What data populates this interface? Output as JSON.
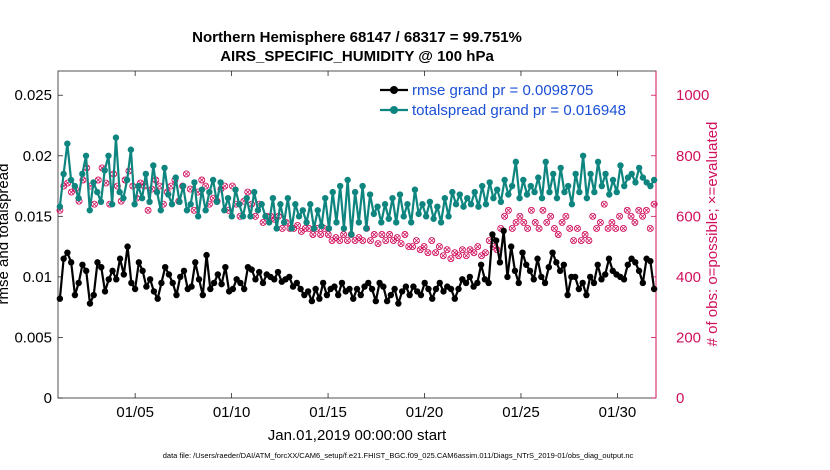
{
  "chart_data": {
    "type": "line",
    "title": "Northern Hemisphere 68147 / 68317 = 99.751%",
    "subtitle": "AIRS_SPECIFIC_HUMIDITY @ 100 hPa",
    "xlabel": "Jan.01,2019 00:00:00 start",
    "ylabel": "rmse and totalspread",
    "ylabel_right": "# of obs: o=possible; ×=evaluated",
    "x_ticks": [
      "01/05",
      "01/10",
      "01/15",
      "01/20",
      "01/25",
      "01/30"
    ],
    "x_tick_days": [
      5,
      10,
      15,
      20,
      25,
      30
    ],
    "xlim": [
      1,
      32
    ],
    "ylim": [
      0,
      0.027
    ],
    "y_ticks": [
      "0",
      "0.005",
      "0.01",
      "0.015",
      "0.02",
      "0.025"
    ],
    "y_tick_values": [
      0,
      0.005,
      0.01,
      0.015,
      0.02,
      0.025
    ],
    "ylim_right": [
      0,
      1080
    ],
    "y_ticks_right": [
      "0",
      "200",
      "400",
      "600",
      "800",
      "1000"
    ],
    "y_tick_values_right": [
      0,
      200,
      400,
      600,
      800,
      1000
    ],
    "footnote": "data file: /Users/raeder/DAI/ATM_forcXX/CAM6_setup/f.e21.FHIST_BGC.f09_025.CAM6assim.011/Diags_NTrS_2019-01/obs_diag_output.nc",
    "series": [
      {
        "name": "rmse grand pr = 0.0098705",
        "color": "#000000",
        "axis": "left",
        "values": [
          0.0082,
          0.0115,
          0.012,
          0.0112,
          0.0085,
          0.0095,
          0.011,
          0.0105,
          0.0078,
          0.0085,
          0.0112,
          0.0108,
          0.0088,
          0.0098,
          0.0105,
          0.0098,
          0.0115,
          0.0102,
          0.0125,
          0.0095,
          0.009,
          0.0112,
          0.0105,
          0.0092,
          0.0098,
          0.0088,
          0.0082,
          0.0095,
          0.0108,
          0.0102,
          0.0095,
          0.0085,
          0.01,
          0.0105,
          0.009,
          0.0092,
          0.0112,
          0.0098,
          0.0085,
          0.0118,
          0.009,
          0.0095,
          0.0102,
          0.0094,
          0.0108,
          0.0088,
          0.009,
          0.0098,
          0.0095,
          0.009,
          0.0108,
          0.0106,
          0.0098,
          0.0104,
          0.0095,
          0.0102,
          0.01,
          0.0098,
          0.0104,
          0.0096,
          0.0098,
          0.01,
          0.0092,
          0.0095,
          0.009,
          0.0085,
          0.0088,
          0.008,
          0.009,
          0.0082,
          0.0095,
          0.0085,
          0.009,
          0.0092,
          0.0085,
          0.0095,
          0.0088,
          0.009,
          0.0082,
          0.009,
          0.0085,
          0.0092,
          0.0095,
          0.009,
          0.008,
          0.0095,
          0.0092,
          0.008,
          0.0085,
          0.009,
          0.0078,
          0.0088,
          0.0092,
          0.0085,
          0.0092,
          0.0088,
          0.0085,
          0.0095,
          0.009,
          0.0082,
          0.009,
          0.0095,
          0.0088,
          0.0092,
          0.009,
          0.0082,
          0.009,
          0.0098,
          0.0095,
          0.01,
          0.0092,
          0.0095,
          0.011,
          0.0098,
          0.0095,
          0.0135,
          0.013,
          0.0112,
          0.0138,
          0.01,
          0.0125,
          0.0105,
          0.0095,
          0.012,
          0.011,
          0.0105,
          0.0098,
          0.0115,
          0.01,
          0.0095,
          0.0108,
          0.012,
          0.0112,
          0.0105,
          0.011,
          0.0085,
          0.01,
          0.01,
          0.009,
          0.0095,
          0.0085,
          0.01,
          0.0095,
          0.011,
          0.0098,
          0.0102,
          0.0115,
          0.0105,
          0.0102,
          0.01,
          0.0098,
          0.011,
          0.0115,
          0.0112,
          0.0105,
          0.0095,
          0.0115,
          0.0113,
          0.009
        ]
      },
      {
        "name": "totalspread grand pr = 0.016948",
        "color": "#0f8580",
        "axis": "left",
        "values": [
          0.0158,
          0.0185,
          0.021,
          0.018,
          0.0175,
          0.0165,
          0.0185,
          0.02,
          0.0155,
          0.0178,
          0.017,
          0.0162,
          0.0188,
          0.02,
          0.016,
          0.0215,
          0.017,
          0.0165,
          0.018,
          0.0205,
          0.016,
          0.0175,
          0.0165,
          0.0185,
          0.0162,
          0.0192,
          0.017,
          0.0155,
          0.019,
          0.0168,
          0.016,
          0.0182,
          0.0162,
          0.0175,
          0.0155,
          0.016,
          0.0178,
          0.015,
          0.0172,
          0.0155,
          0.017,
          0.018,
          0.0162,
          0.0178,
          0.0155,
          0.0165,
          0.015,
          0.0172,
          0.016,
          0.015,
          0.0165,
          0.015,
          0.017,
          0.0155,
          0.016,
          0.015,
          0.0145,
          0.0165,
          0.014,
          0.016,
          0.0145,
          0.0165,
          0.014,
          0.016,
          0.015,
          0.0155,
          0.0145,
          0.016,
          0.014,
          0.0155,
          0.0142,
          0.0165,
          0.014,
          0.017,
          0.0145,
          0.0175,
          0.014,
          0.018,
          0.0135,
          0.017,
          0.0145,
          0.0175,
          0.014,
          0.0168,
          0.0152,
          0.0158,
          0.0145,
          0.016,
          0.0148,
          0.0165,
          0.0145,
          0.0168,
          0.015,
          0.016,
          0.0145,
          0.0172,
          0.0152,
          0.016,
          0.015,
          0.0162,
          0.0148,
          0.0158,
          0.0145,
          0.0165,
          0.015,
          0.017,
          0.016,
          0.0168,
          0.0158,
          0.0165,
          0.016,
          0.017,
          0.0158,
          0.0175,
          0.016,
          0.0178,
          0.0165,
          0.0172,
          0.0162,
          0.018,
          0.0168,
          0.0175,
          0.0195,
          0.0165,
          0.018,
          0.0168,
          0.0175,
          0.017,
          0.0182,
          0.0165,
          0.0195,
          0.017,
          0.0185,
          0.0165,
          0.019,
          0.017,
          0.0175,
          0.016,
          0.0185,
          0.017,
          0.02,
          0.0165,
          0.0185,
          0.017,
          0.0195,
          0.0175,
          0.0185,
          0.0168,
          0.018,
          0.017,
          0.0192,
          0.0175,
          0.0182,
          0.0185,
          0.0178,
          0.019,
          0.0182,
          0.0178,
          0.0175,
          0.018
        ]
      },
      {
        "name": "# of obs possible",
        "color": "#d0115e",
        "axis": "right",
        "marker": "o",
        "values": [
          620,
          700,
          710,
          680,
          690,
          650,
          720,
          760,
          700,
          640,
          720,
          760,
          710,
          640,
          740,
          700,
          650,
          720,
          750,
          700,
          660,
          710,
          700,
          620,
          690,
          720,
          700,
          640,
          680,
          700,
          720,
          650,
          700,
          740,
          690,
          620,
          680,
          720,
          700,
          640,
          660,
          650,
          690,
          700,
          620,
          700,
          640,
          600,
          650,
          680,
          640,
          600,
          640,
          580,
          600,
          600,
          590,
          600,
          560,
          580,
          560,
          560,
          570,
          550,
          560,
          560,
          540,
          560,
          540,
          560,
          540,
          520,
          530,
          520,
          540,
          520,
          540,
          520,
          530,
          520,
          560,
          520,
          540,
          510,
          540,
          520,
          540,
          520,
          530,
          510,
          540,
          500,
          500,
          520,
          490,
          500,
          480,
          520,
          480,
          500,
          470,
          490,
          460,
          480,
          470,
          490,
          470,
          490,
          480,
          500,
          470,
          480,
          520,
          500,
          490,
          560,
          600,
          620,
          560,
          580,
          600,
          580,
          560,
          620,
          580,
          560,
          620,
          580,
          600,
          560,
          540,
          580,
          600,
          560,
          520,
          560,
          520,
          540,
          520,
          600,
          560,
          580,
          640,
          560,
          580,
          560,
          600,
          560,
          620,
          600,
          580,
          620,
          600,
          620,
          560,
          640
        ]
      }
    ]
  }
}
